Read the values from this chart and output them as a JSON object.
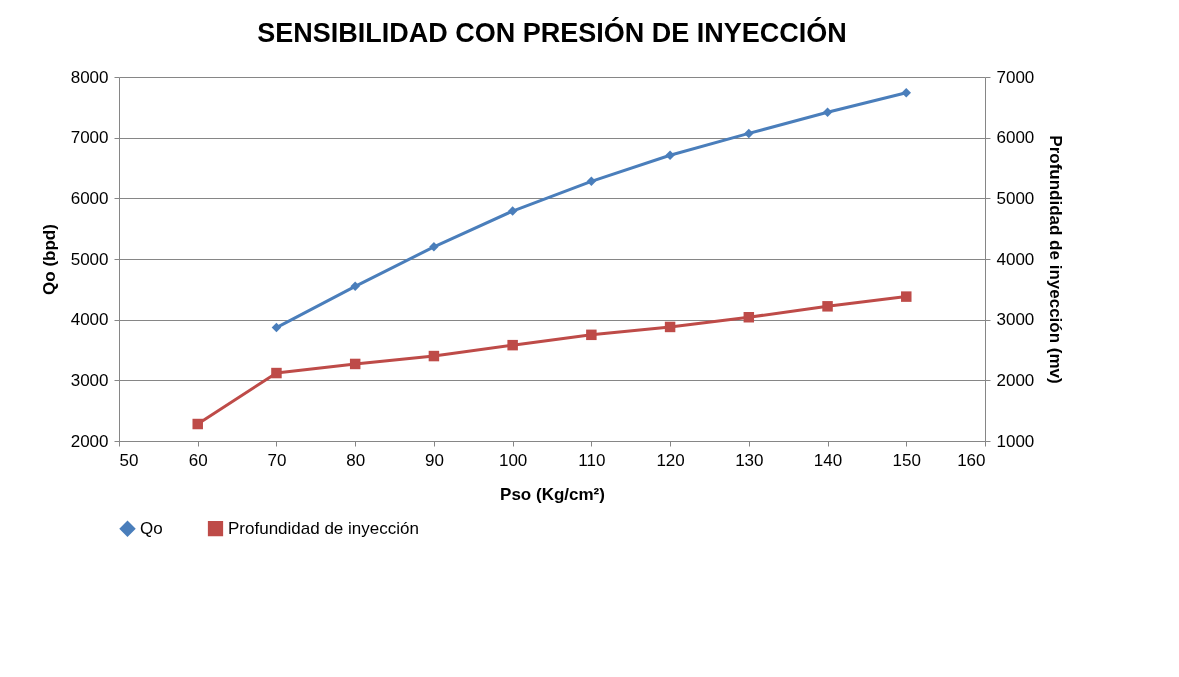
{
  "chart_data": {
    "type": "line",
    "title": "SENSIBILIDAD CON PRESIÓN DE INYECCIÓN",
    "xlabel": "Pso (Kg/cm²)",
    "ylabel": "Qo (bpd)",
    "y2label": "Profundidad de inyección (mv)",
    "xlim": [
      50,
      160
    ],
    "xticks": [
      50,
      60,
      70,
      80,
      90,
      100,
      110,
      120,
      130,
      140,
      150,
      160
    ],
    "ylim": [
      2000,
      8000
    ],
    "yticks": [
      2000,
      3000,
      4000,
      5000,
      6000,
      7000,
      8000
    ],
    "y2lim": [
      1000,
      7000
    ],
    "y2ticks": [
      1000,
      2000,
      3000,
      4000,
      5000,
      6000,
      7000
    ],
    "grid": "y",
    "legend": "bottom",
    "series": [
      {
        "name": "Qo",
        "color": "#4a7ebb",
        "marker": "diamond",
        "x": [
          70,
          80,
          90,
          100,
          110,
          120,
          130,
          140,
          150
        ],
        "values": [
          3870,
          4550,
          5200,
          5790,
          6280,
          6710,
          7070,
          7420,
          7740
        ]
      },
      {
        "name": "Profundidad de inyección",
        "color": "#be4b48",
        "marker": "square",
        "axis": "y2",
        "x": [
          60,
          70,
          80,
          90,
          100,
          110,
          120,
          130,
          140,
          150
        ],
        "values": [
          1280,
          2120,
          2270,
          2400,
          2580,
          2750,
          2880,
          3040,
          3220,
          3380
        ]
      }
    ]
  }
}
